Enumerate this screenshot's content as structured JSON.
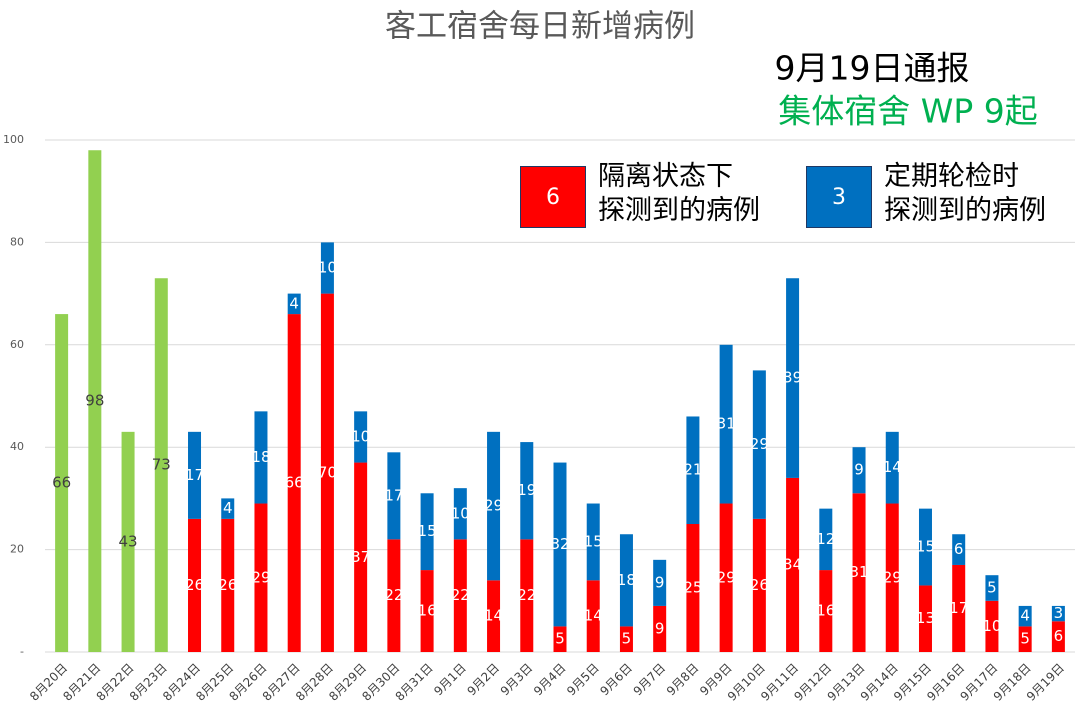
{
  "chart_data": {
    "type": "stacked_bar",
    "title": "客工宿舍每日新增病例",
    "annotations": [
      "9月19日通报",
      "集体宿舍 WP 9起"
    ],
    "categories": [
      "8月20日",
      "8月21日",
      "8月22日",
      "8月23日",
      "8月24日",
      "8月25日",
      "8月26日",
      "8月27日",
      "8月28日",
      "8月29日",
      "8月30日",
      "8月31日",
      "9月1日",
      "9月2日",
      "9月3日",
      "9月4日",
      "9月5日",
      "9月6日",
      "9月7日",
      "9月8日",
      "9月9日",
      "9月10日",
      "9月11日",
      "9月12日",
      "9月13日",
      "9月14日",
      "9月15日",
      "9月16日",
      "9月17日",
      "9月18日",
      "9月19日"
    ],
    "series": [
      {
        "color": "#92d050",
        "values": [
          66,
          98,
          43,
          73,
          null,
          null,
          null,
          null,
          null,
          null,
          null,
          null,
          null,
          null,
          null,
          null,
          null,
          null,
          null,
          null,
          null,
          null,
          null,
          null,
          null,
          null,
          null,
          null,
          null,
          null,
          null
        ]
      },
      {
        "name": "隔离状态下\n探测到的病例",
        "color": "#ff0000",
        "values": [
          null,
          null,
          null,
          null,
          26,
          26,
          29,
          66,
          70,
          37,
          22,
          16,
          22,
          14,
          22,
          5,
          14,
          5,
          9,
          25,
          29,
          26,
          34,
          16,
          31,
          29,
          13,
          17,
          10,
          5,
          6
        ]
      },
      {
        "name": "定期轮检时\n探测到的病例",
        "color": "#0070c0",
        "values": [
          null,
          null,
          null,
          null,
          17,
          4,
          18,
          4,
          10,
          10,
          17,
          15,
          10,
          29,
          19,
          32,
          15,
          18,
          9,
          21,
          31,
          29,
          39,
          12,
          9,
          14,
          15,
          6,
          5,
          4,
          3
        ]
      }
    ],
    "ylim": [
      0,
      100
    ],
    "yticks": [
      {
        "value": 0,
        "label": "-"
      },
      20,
      40,
      60,
      80,
      100
    ],
    "grid": true
  }
}
